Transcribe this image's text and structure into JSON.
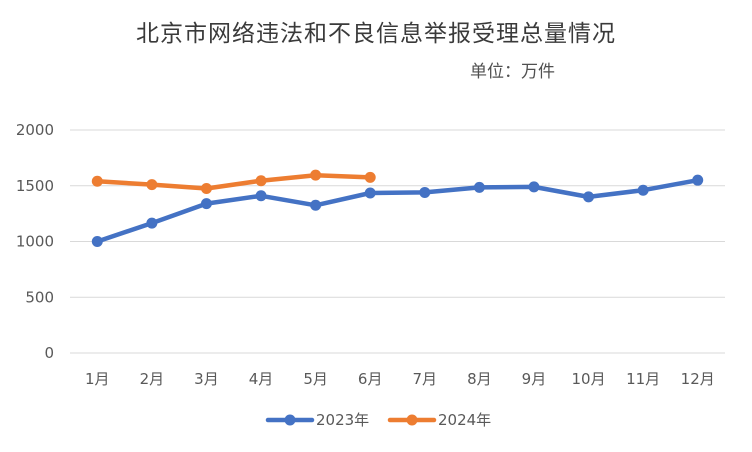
{
  "chart_data": {
    "type": "line",
    "title": "北京市网络违法和不良信息举报受理总量情况",
    "subtitle": "单位：万件",
    "categories": [
      "1月",
      "2月",
      "3月",
      "4月",
      "5月",
      "6月",
      "7月",
      "8月",
      "9月",
      "10月",
      "11月",
      "12月"
    ],
    "series": [
      {
        "name": "2023年",
        "color": "#4472C4",
        "values": [
          1000,
          1165,
          1340,
          1410,
          1325,
          1435,
          1440,
          1485,
          1490,
          1400,
          1460,
          1550
        ]
      },
      {
        "name": "2024年",
        "color": "#ED7D31",
        "values": [
          1540,
          1510,
          1475,
          1545,
          1595,
          1575,
          null,
          null,
          null,
          null,
          null,
          null
        ]
      }
    ],
    "yticks": [
      0,
      500,
      1000,
      1500,
      2000
    ],
    "ylim": [
      0,
      2000
    ],
    "grid": true,
    "legend_position": "bottom"
  }
}
